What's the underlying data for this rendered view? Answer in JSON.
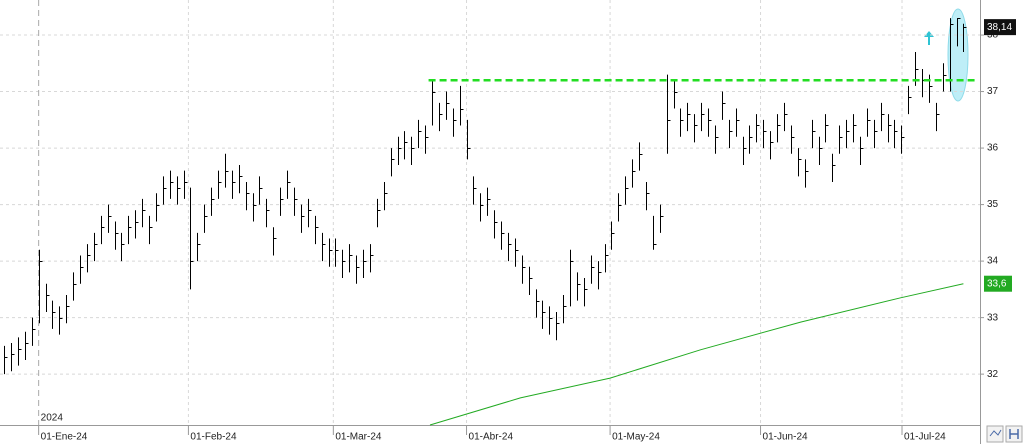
{
  "chart_data": {
    "type": "ohlc",
    "color": "#000000",
    "xlim": [
      -0.6,
      141.4
    ],
    "ylim": [
      31.1,
      38.62
    ],
    "yticks": [
      32,
      33,
      34,
      35,
      36,
      37,
      38
    ],
    "xticks": [
      {
        "value": 5,
        "label": "01-Ene-24"
      },
      {
        "value": 26.7,
        "label": "01-Feb-24"
      },
      {
        "value": 47.7,
        "label": "01-Mar-24"
      },
      {
        "value": 67,
        "label": "01-Abr-24"
      },
      {
        "value": 87.8,
        "label": "01-May-24"
      },
      {
        "value": 109.6,
        "label": "01-Jun-24"
      },
      {
        "value": 130.1,
        "label": "01-Jul-24"
      }
    ],
    "year_label": "2024",
    "grid": true,
    "high": [
      32.5,
      32.55,
      32.65,
      32.75,
      33.0,
      34.2,
      33.6,
      33.3,
      33.2,
      33.4,
      33.8,
      34.1,
      34.3,
      34.5,
      34.8,
      35.0,
      34.7,
      34.5,
      34.8,
      34.9,
      35.1,
      34.8,
      35.2,
      35.5,
      35.6,
      35.5,
      35.6,
      35.3,
      34.5,
      35.0,
      35.3,
      35.6,
      35.9,
      35.6,
      35.7,
      35.4,
      35.2,
      35.5,
      35.1,
      34.6,
      35.3,
      35.6,
      35.3,
      35.0,
      35.1,
      34.8,
      34.5,
      34.4,
      34.4,
      34.2,
      34.3,
      34.1,
      34.2,
      34.3,
      35.1,
      35.4,
      36.0,
      36.2,
      36.3,
      36.2,
      36.5,
      36.4,
      37.2,
      36.8,
      37.0,
      36.7,
      37.1,
      36.5,
      35.5,
      35.2,
      35.3,
      34.9,
      34.7,
      34.5,
      34.4,
      34.1,
      33.9,
      33.5,
      33.3,
      33.2,
      33.1,
      33.4,
      34.2,
      33.8,
      33.7,
      34.1,
      34.0,
      34.3,
      34.7,
      35.2,
      35.5,
      35.8,
      36.1,
      35.4,
      34.8,
      35.0,
      37.3,
      37.2,
      36.7,
      36.8,
      36.6,
      36.8,
      36.7,
      36.4,
      37.0,
      36.5,
      36.7,
      36.2,
      36.4,
      36.6,
      36.5,
      36.3,
      36.6,
      36.8,
      36.4,
      36.0,
      35.8,
      36.5,
      36.2,
      36.6,
      35.9,
      36.4,
      36.5,
      36.6,
      36.2,
      36.7,
      36.5,
      36.8,
      36.6,
      36.5,
      36.4,
      37.1,
      37.7,
      37.4,
      37.3,
      36.8,
      37.5,
      38.3,
      38.3,
      38.2
    ],
    "low": [
      32.0,
      32.05,
      32.15,
      32.25,
      32.5,
      32.9,
      33.1,
      32.8,
      32.7,
      32.9,
      33.3,
      33.6,
      33.8,
      34.0,
      34.3,
      34.5,
      34.2,
      34.0,
      34.3,
      34.4,
      34.6,
      34.3,
      34.7,
      35.0,
      35.1,
      35.0,
      35.1,
      33.5,
      34.0,
      34.5,
      34.8,
      35.1,
      35.3,
      35.1,
      35.2,
      34.9,
      34.7,
      35.0,
      34.6,
      34.1,
      34.8,
      35.1,
      34.8,
      34.5,
      34.6,
      34.3,
      34.0,
      33.9,
      33.9,
      33.7,
      33.8,
      33.6,
      33.7,
      33.8,
      34.6,
      34.9,
      35.5,
      35.7,
      35.8,
      35.7,
      36.0,
      35.9,
      36.4,
      36.3,
      36.5,
      36.2,
      36.4,
      35.8,
      35.0,
      34.7,
      34.8,
      34.4,
      34.2,
      34.0,
      33.9,
      33.6,
      33.4,
      33.0,
      32.8,
      32.7,
      32.6,
      32.9,
      33.2,
      33.3,
      33.2,
      33.6,
      33.5,
      33.8,
      34.2,
      34.7,
      35.0,
      35.3,
      35.6,
      34.9,
      34.2,
      34.5,
      35.9,
      36.7,
      36.2,
      36.3,
      36.1,
      36.3,
      36.2,
      35.9,
      36.5,
      36.0,
      36.2,
      35.7,
      35.9,
      36.1,
      36.0,
      35.8,
      36.1,
      36.3,
      35.9,
      35.5,
      35.3,
      36.0,
      35.7,
      36.1,
      35.4,
      35.9,
      36.0,
      36.1,
      35.7,
      36.2,
      36.0,
      36.3,
      36.1,
      36.0,
      35.9,
      36.6,
      37.1,
      36.9,
      36.8,
      36.3,
      37.0,
      37.0,
      37.8,
      37.7
    ],
    "close": [
      32.3,
      32.35,
      32.45,
      32.55,
      32.8,
      34.0,
      33.4,
      33.1,
      33.0,
      33.2,
      33.6,
      33.9,
      34.1,
      34.3,
      34.6,
      34.8,
      34.5,
      34.3,
      34.6,
      34.7,
      34.9,
      34.6,
      35.0,
      35.3,
      35.4,
      35.3,
      35.4,
      34.0,
      34.3,
      34.8,
      35.1,
      35.4,
      35.6,
      35.4,
      35.5,
      35.2,
      35.0,
      35.3,
      34.9,
      34.4,
      35.1,
      35.4,
      35.1,
      34.8,
      34.9,
      34.6,
      34.3,
      34.2,
      34.2,
      34.0,
      34.1,
      33.9,
      34.0,
      34.1,
      34.9,
      35.2,
      35.8,
      36.0,
      36.1,
      36.0,
      36.3,
      36.2,
      37.0,
      36.6,
      36.8,
      36.5,
      36.7,
      36.0,
      35.3,
      35.0,
      35.1,
      34.7,
      34.5,
      34.3,
      34.2,
      33.9,
      33.7,
      33.3,
      33.1,
      33.0,
      32.9,
      33.2,
      34.0,
      33.6,
      33.5,
      33.9,
      33.8,
      34.1,
      34.5,
      35.0,
      35.3,
      35.6,
      35.9,
      35.2,
      34.3,
      34.8,
      36.5,
      37.0,
      36.5,
      36.6,
      36.4,
      36.6,
      36.5,
      36.2,
      36.8,
      36.3,
      36.5,
      36.0,
      36.2,
      36.4,
      36.3,
      36.1,
      36.4,
      36.6,
      36.2,
      35.8,
      35.6,
      36.3,
      36.0,
      36.4,
      35.7,
      36.2,
      36.3,
      36.4,
      36.0,
      36.5,
      36.3,
      36.6,
      36.4,
      36.3,
      36.2,
      36.9,
      37.4,
      37.2,
      37.1,
      36.6,
      37.3,
      38.2,
      38.3,
      38.14
    ],
    "last_label": {
      "value": 38.14,
      "label": "38,14"
    },
    "resistance": {
      "value": 37.2,
      "x": [
        61.5,
        141
      ],
      "color": "#22dd22"
    },
    "moving_average": {
      "color": "#22aa22",
      "x": [
        61.7,
        74.8,
        87.8,
        100.9,
        115.4,
        129.9,
        139
      ],
      "values": [
        31.1,
        31.58,
        31.93,
        32.43,
        32.92,
        33.35,
        33.6
      ],
      "label": {
        "value": 33.6,
        "label": "33,6"
      }
    }
  }
}
